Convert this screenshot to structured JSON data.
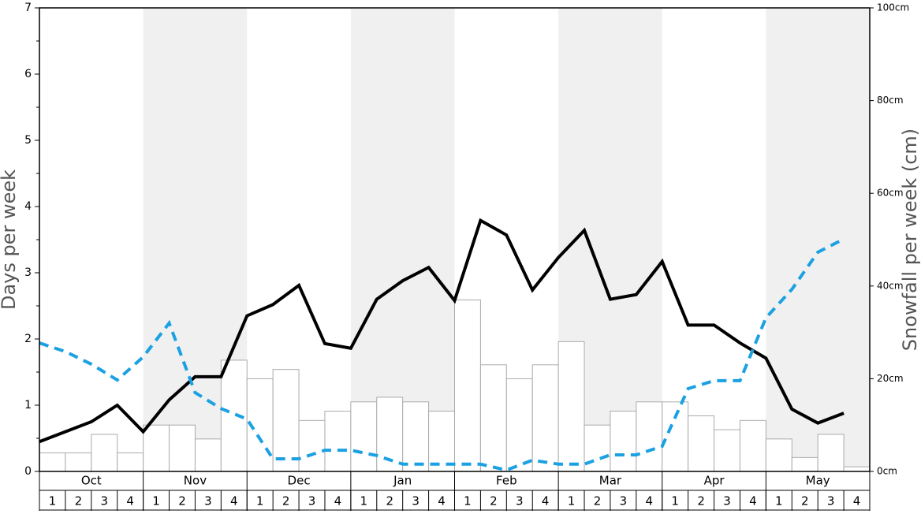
{
  "chart_data": {
    "type": "bar_line",
    "y_label": "Days per week",
    "y2_label": "Snowfall per week (cm)",
    "months": [
      "Oct",
      "Nov",
      "Dec",
      "Jan",
      "Feb",
      "Mar",
      "Apr",
      "May"
    ],
    "categories": [
      "1",
      "2",
      "3",
      "4",
      "1",
      "2",
      "3",
      "4",
      "1",
      "2",
      "3",
      "4",
      "1",
      "2",
      "3",
      "4",
      "1",
      "2",
      "3",
      "4",
      "1",
      "2",
      "3",
      "4",
      "1",
      "2",
      "3",
      "4",
      "1",
      "2",
      "3",
      "4"
    ],
    "ylim": [
      0,
      7
    ],
    "yticks": [
      0,
      1,
      2,
      3,
      4,
      5,
      6,
      7
    ],
    "y2lim": [
      0,
      100
    ],
    "y2ticks": [
      {
        "value": 0,
        "label": "0cm"
      },
      {
        "value": 20,
        "label": "20cm"
      },
      {
        "value": 40,
        "label": "40cm"
      },
      {
        "value": 60,
        "label": "60cm"
      },
      {
        "value": 80,
        "label": "80cm"
      },
      {
        "value": 100,
        "label": "100cm"
      }
    ],
    "series": [
      {
        "type": "bar",
        "axis": "y2",
        "color": "#ffffff",
        "values": [
          4,
          4,
          8,
          4,
          10,
          10,
          7,
          24,
          20,
          22,
          11,
          13,
          15,
          16,
          15,
          13,
          37,
          23,
          20,
          23,
          28,
          10,
          13,
          15,
          15,
          12,
          9,
          11,
          7,
          3,
          8,
          1
        ]
      },
      {
        "type": "line",
        "color": "#000000",
        "values": [
          0.45,
          0.6,
          0.75,
          1.0,
          0.6,
          1.08,
          1.43,
          1.43,
          2.35,
          2.52,
          2.81,
          1.93,
          1.86,
          2.6,
          2.88,
          3.08,
          2.58,
          3.79,
          3.57,
          2.74,
          3.23,
          3.64,
          2.6,
          2.67,
          3.17,
          2.21,
          2.21,
          1.94,
          1.71,
          0.94,
          0.73,
          0.88
        ]
      },
      {
        "type": "dashed",
        "color": "#1ba1e2",
        "values": [
          1.94,
          1.81,
          1.62,
          1.38,
          1.73,
          2.24,
          1.19,
          0.95,
          0.79,
          0.19,
          0.19,
          0.32,
          0.32,
          0.24,
          0.11,
          0.11,
          0.11,
          0.11,
          0.02,
          0.17,
          0.11,
          0.11,
          0.25,
          0.25,
          0.38,
          1.25,
          1.37,
          1.37,
          2.32,
          2.75,
          3.31,
          3.51
        ]
      }
    ]
  }
}
